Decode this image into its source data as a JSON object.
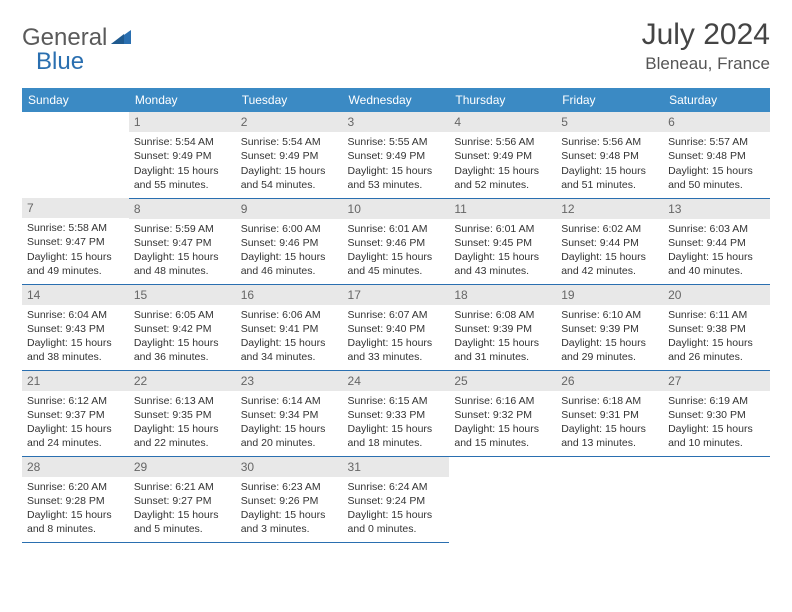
{
  "brand": {
    "part1": "General",
    "part2": "Blue"
  },
  "title": "July 2024",
  "location": "Bleneau, France",
  "colors": {
    "header_bg": "#3b8ac4",
    "header_fg": "#ffffff",
    "row_border": "#2a6fb0",
    "daynum_bg": "#e8e8e8",
    "daynum_fg": "#666666",
    "brand_gray": "#5a5a5a",
    "brand_blue": "#2a6fb0",
    "page_bg": "#ffffff"
  },
  "typography": {
    "title_fontsize": 30,
    "location_fontsize": 17,
    "header_fontsize": 12,
    "cell_fontsize": 10.5
  },
  "weekdays": [
    "Sunday",
    "Monday",
    "Tuesday",
    "Wednesday",
    "Thursday",
    "Friday",
    "Saturday"
  ],
  "weeks": [
    [
      {
        "n": "",
        "sr": "",
        "ss": "",
        "dl1": "",
        "dl2": ""
      },
      {
        "n": "1",
        "sr": "Sunrise: 5:54 AM",
        "ss": "Sunset: 9:49 PM",
        "dl1": "Daylight: 15 hours",
        "dl2": "and 55 minutes."
      },
      {
        "n": "2",
        "sr": "Sunrise: 5:54 AM",
        "ss": "Sunset: 9:49 PM",
        "dl1": "Daylight: 15 hours",
        "dl2": "and 54 minutes."
      },
      {
        "n": "3",
        "sr": "Sunrise: 5:55 AM",
        "ss": "Sunset: 9:49 PM",
        "dl1": "Daylight: 15 hours",
        "dl2": "and 53 minutes."
      },
      {
        "n": "4",
        "sr": "Sunrise: 5:56 AM",
        "ss": "Sunset: 9:49 PM",
        "dl1": "Daylight: 15 hours",
        "dl2": "and 52 minutes."
      },
      {
        "n": "5",
        "sr": "Sunrise: 5:56 AM",
        "ss": "Sunset: 9:48 PM",
        "dl1": "Daylight: 15 hours",
        "dl2": "and 51 minutes."
      },
      {
        "n": "6",
        "sr": "Sunrise: 5:57 AM",
        "ss": "Sunset: 9:48 PM",
        "dl1": "Daylight: 15 hours",
        "dl2": "and 50 minutes."
      }
    ],
    [
      {
        "n": "7",
        "sr": "Sunrise: 5:58 AM",
        "ss": "Sunset: 9:47 PM",
        "dl1": "Daylight: 15 hours",
        "dl2": "and 49 minutes."
      },
      {
        "n": "8",
        "sr": "Sunrise: 5:59 AM",
        "ss": "Sunset: 9:47 PM",
        "dl1": "Daylight: 15 hours",
        "dl2": "and 48 minutes."
      },
      {
        "n": "9",
        "sr": "Sunrise: 6:00 AM",
        "ss": "Sunset: 9:46 PM",
        "dl1": "Daylight: 15 hours",
        "dl2": "and 46 minutes."
      },
      {
        "n": "10",
        "sr": "Sunrise: 6:01 AM",
        "ss": "Sunset: 9:46 PM",
        "dl1": "Daylight: 15 hours",
        "dl2": "and 45 minutes."
      },
      {
        "n": "11",
        "sr": "Sunrise: 6:01 AM",
        "ss": "Sunset: 9:45 PM",
        "dl1": "Daylight: 15 hours",
        "dl2": "and 43 minutes."
      },
      {
        "n": "12",
        "sr": "Sunrise: 6:02 AM",
        "ss": "Sunset: 9:44 PM",
        "dl1": "Daylight: 15 hours",
        "dl2": "and 42 minutes."
      },
      {
        "n": "13",
        "sr": "Sunrise: 6:03 AM",
        "ss": "Sunset: 9:44 PM",
        "dl1": "Daylight: 15 hours",
        "dl2": "and 40 minutes."
      }
    ],
    [
      {
        "n": "14",
        "sr": "Sunrise: 6:04 AM",
        "ss": "Sunset: 9:43 PM",
        "dl1": "Daylight: 15 hours",
        "dl2": "and 38 minutes."
      },
      {
        "n": "15",
        "sr": "Sunrise: 6:05 AM",
        "ss": "Sunset: 9:42 PM",
        "dl1": "Daylight: 15 hours",
        "dl2": "and 36 minutes."
      },
      {
        "n": "16",
        "sr": "Sunrise: 6:06 AM",
        "ss": "Sunset: 9:41 PM",
        "dl1": "Daylight: 15 hours",
        "dl2": "and 34 minutes."
      },
      {
        "n": "17",
        "sr": "Sunrise: 6:07 AM",
        "ss": "Sunset: 9:40 PM",
        "dl1": "Daylight: 15 hours",
        "dl2": "and 33 minutes."
      },
      {
        "n": "18",
        "sr": "Sunrise: 6:08 AM",
        "ss": "Sunset: 9:39 PM",
        "dl1": "Daylight: 15 hours",
        "dl2": "and 31 minutes."
      },
      {
        "n": "19",
        "sr": "Sunrise: 6:10 AM",
        "ss": "Sunset: 9:39 PM",
        "dl1": "Daylight: 15 hours",
        "dl2": "and 29 minutes."
      },
      {
        "n": "20",
        "sr": "Sunrise: 6:11 AM",
        "ss": "Sunset: 9:38 PM",
        "dl1": "Daylight: 15 hours",
        "dl2": "and 26 minutes."
      }
    ],
    [
      {
        "n": "21",
        "sr": "Sunrise: 6:12 AM",
        "ss": "Sunset: 9:37 PM",
        "dl1": "Daylight: 15 hours",
        "dl2": "and 24 minutes."
      },
      {
        "n": "22",
        "sr": "Sunrise: 6:13 AM",
        "ss": "Sunset: 9:35 PM",
        "dl1": "Daylight: 15 hours",
        "dl2": "and 22 minutes."
      },
      {
        "n": "23",
        "sr": "Sunrise: 6:14 AM",
        "ss": "Sunset: 9:34 PM",
        "dl1": "Daylight: 15 hours",
        "dl2": "and 20 minutes."
      },
      {
        "n": "24",
        "sr": "Sunrise: 6:15 AM",
        "ss": "Sunset: 9:33 PM",
        "dl1": "Daylight: 15 hours",
        "dl2": "and 18 minutes."
      },
      {
        "n": "25",
        "sr": "Sunrise: 6:16 AM",
        "ss": "Sunset: 9:32 PM",
        "dl1": "Daylight: 15 hours",
        "dl2": "and 15 minutes."
      },
      {
        "n": "26",
        "sr": "Sunrise: 6:18 AM",
        "ss": "Sunset: 9:31 PM",
        "dl1": "Daylight: 15 hours",
        "dl2": "and 13 minutes."
      },
      {
        "n": "27",
        "sr": "Sunrise: 6:19 AM",
        "ss": "Sunset: 9:30 PM",
        "dl1": "Daylight: 15 hours",
        "dl2": "and 10 minutes."
      }
    ],
    [
      {
        "n": "28",
        "sr": "Sunrise: 6:20 AM",
        "ss": "Sunset: 9:28 PM",
        "dl1": "Daylight: 15 hours",
        "dl2": "and 8 minutes."
      },
      {
        "n": "29",
        "sr": "Sunrise: 6:21 AM",
        "ss": "Sunset: 9:27 PM",
        "dl1": "Daylight: 15 hours",
        "dl2": "and 5 minutes."
      },
      {
        "n": "30",
        "sr": "Sunrise: 6:23 AM",
        "ss": "Sunset: 9:26 PM",
        "dl1": "Daylight: 15 hours",
        "dl2": "and 3 minutes."
      },
      {
        "n": "31",
        "sr": "Sunrise: 6:24 AM",
        "ss": "Sunset: 9:24 PM",
        "dl1": "Daylight: 15 hours",
        "dl2": "and 0 minutes."
      },
      {
        "n": "",
        "sr": "",
        "ss": "",
        "dl1": "",
        "dl2": ""
      },
      {
        "n": "",
        "sr": "",
        "ss": "",
        "dl1": "",
        "dl2": ""
      },
      {
        "n": "",
        "sr": "",
        "ss": "",
        "dl1": "",
        "dl2": ""
      }
    ]
  ]
}
